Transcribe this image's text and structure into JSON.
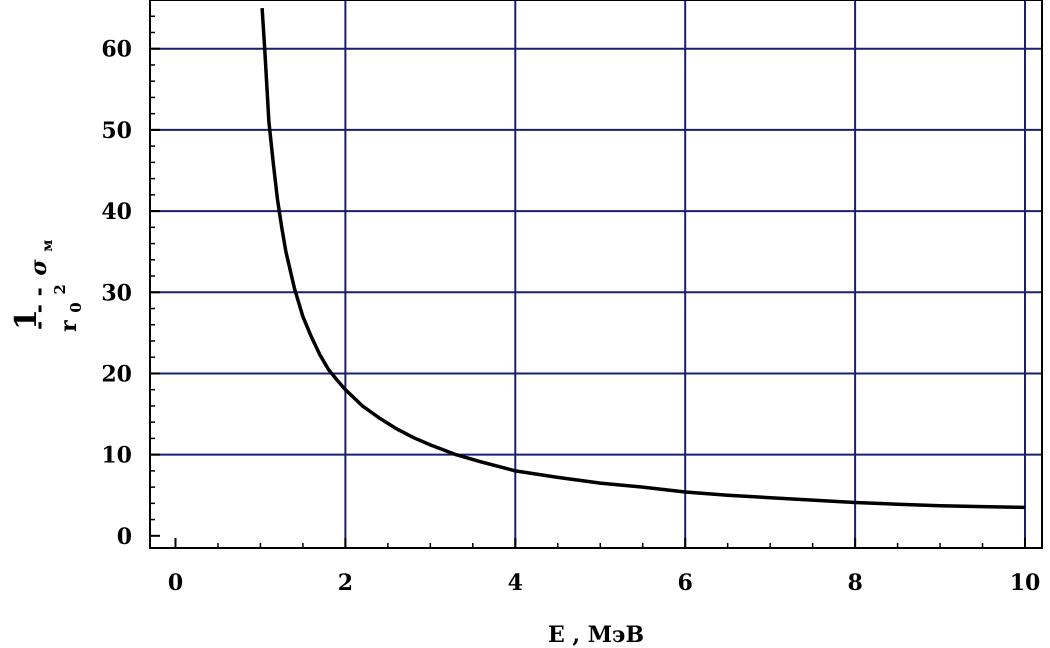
{
  "chart_data": {
    "type": "line",
    "xlabel": "E , МэВ",
    "ylabel": {
      "numerator": "1",
      "dashes": "- - -",
      "denominator_base": "r",
      "denominator_sub": "0",
      "denominator_sup": "2",
      "symbol": "σ",
      "symbol_sub": "м"
    },
    "xlim": [
      -0.3,
      10.2
    ],
    "ylim": [
      -1.5,
      66
    ],
    "xticks": [
      0,
      2,
      4,
      6,
      8,
      10
    ],
    "yticks": [
      0,
      10,
      20,
      30,
      40,
      50,
      60
    ],
    "grid": true,
    "series": [
      {
        "x": [
          1.02,
          1.05,
          1.1,
          1.15,
          1.2,
          1.25,
          1.3,
          1.4,
          1.5,
          1.6,
          1.7,
          1.8,
          1.9,
          2.0,
          2.2,
          2.4,
          2.6,
          2.8,
          3.0,
          3.3,
          3.6,
          4.0,
          4.5,
          5.0,
          5.5,
          6.0,
          6.5,
          7.0,
          7.5,
          8.0,
          8.5,
          9.0,
          9.5,
          10.0
        ],
        "y": [
          65,
          60,
          51,
          46,
          41.5,
          38,
          35,
          30.5,
          27,
          24.5,
          22.3,
          20.5,
          19.2,
          18,
          16,
          14.5,
          13.2,
          12.1,
          11.2,
          10,
          9.1,
          8,
          7.2,
          6.5,
          6,
          5.4,
          5,
          4.7,
          4.4,
          4.1,
          3.9,
          3.7,
          3.6,
          3.5
        ]
      }
    ]
  }
}
